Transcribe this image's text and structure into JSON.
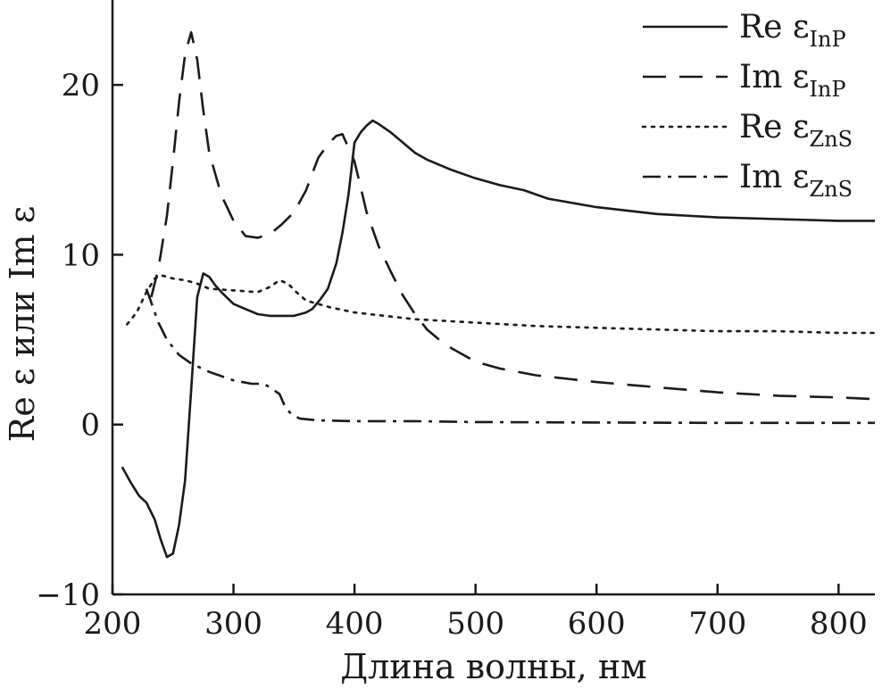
{
  "chart_data": {
    "type": "line",
    "title": "",
    "xlabel": "Длина волны, нм",
    "ylabel": "Re ε или Im ε",
    "xlim": [
      200,
      830
    ],
    "ylim": [
      -10,
      25
    ],
    "x_ticks": [
      200,
      300,
      400,
      500,
      600,
      700,
      800
    ],
    "x_tick_labels": [
      "200",
      "300",
      "400",
      "500",
      "600",
      "700",
      "800"
    ],
    "y_ticks": [
      -10,
      0,
      10,
      20
    ],
    "y_tick_labels": [
      "−10",
      "0",
      "10",
      "20"
    ],
    "grid": false,
    "legend_position": "top-right",
    "series": [
      {
        "name": "Re ε_InP",
        "label_main": "Re ε",
        "label_sub": "InP",
        "line_style": "solid",
        "color": "#1a1a1a",
        "points": [
          [
            208,
            -2.5
          ],
          [
            215,
            -3.4
          ],
          [
            222,
            -4.2
          ],
          [
            228,
            -4.6
          ],
          [
            235,
            -5.6
          ],
          [
            240,
            -6.8
          ],
          [
            245,
            -7.8
          ],
          [
            250,
            -7.6
          ],
          [
            255,
            -5.9
          ],
          [
            260,
            -3.3
          ],
          [
            265,
            2.0
          ],
          [
            270,
            7.5
          ],
          [
            275,
            8.9
          ],
          [
            280,
            8.7
          ],
          [
            285,
            8.2
          ],
          [
            290,
            7.8
          ],
          [
            300,
            7.1
          ],
          [
            310,
            6.8
          ],
          [
            320,
            6.5
          ],
          [
            330,
            6.4
          ],
          [
            340,
            6.4
          ],
          [
            350,
            6.4
          ],
          [
            360,
            6.6
          ],
          [
            365,
            6.8
          ],
          [
            372,
            7.4
          ],
          [
            378,
            8.0
          ],
          [
            385,
            9.5
          ],
          [
            390,
            11.3
          ],
          [
            395,
            13.5
          ],
          [
            400,
            16.6
          ],
          [
            405,
            17.2
          ],
          [
            410,
            17.6
          ],
          [
            415,
            17.9
          ],
          [
            420,
            17.7
          ],
          [
            430,
            17.2
          ],
          [
            440,
            16.6
          ],
          [
            450,
            16.0
          ],
          [
            460,
            15.6
          ],
          [
            480,
            15.0
          ],
          [
            500,
            14.5
          ],
          [
            520,
            14.1
          ],
          [
            540,
            13.8
          ],
          [
            560,
            13.3
          ],
          [
            600,
            12.8
          ],
          [
            650,
            12.4
          ],
          [
            700,
            12.2
          ],
          [
            750,
            12.1
          ],
          [
            800,
            12.0
          ],
          [
            830,
            12.0
          ]
        ]
      },
      {
        "name": "Im ε_InP",
        "label_main": "Im ε",
        "label_sub": "InP",
        "line_style": "dashed",
        "color": "#1a1a1a",
        "points": [
          [
            232,
            7.5
          ],
          [
            238,
            9.2
          ],
          [
            245,
            12.3
          ],
          [
            250,
            15.5
          ],
          [
            255,
            19.0
          ],
          [
            260,
            21.8
          ],
          [
            265,
            23.1
          ],
          [
            270,
            21.5
          ],
          [
            275,
            18.5
          ],
          [
            280,
            16.0
          ],
          [
            290,
            13.5
          ],
          [
            300,
            12.0
          ],
          [
            310,
            11.1
          ],
          [
            320,
            11.0
          ],
          [
            330,
            11.2
          ],
          [
            340,
            11.8
          ],
          [
            350,
            12.5
          ],
          [
            360,
            13.8
          ],
          [
            370,
            15.7
          ],
          [
            378,
            16.5
          ],
          [
            385,
            17.0
          ],
          [
            390,
            17.1
          ],
          [
            395,
            16.3
          ],
          [
            400,
            15.5
          ],
          [
            410,
            12.5
          ],
          [
            420,
            10.5
          ],
          [
            430,
            9.0
          ],
          [
            440,
            7.6
          ],
          [
            450,
            6.5
          ],
          [
            460,
            5.6
          ],
          [
            470,
            5.0
          ],
          [
            480,
            4.5
          ],
          [
            500,
            3.7
          ],
          [
            520,
            3.3
          ],
          [
            550,
            2.9
          ],
          [
            600,
            2.5
          ],
          [
            650,
            2.2
          ],
          [
            700,
            1.9
          ],
          [
            750,
            1.7
          ],
          [
            800,
            1.6
          ],
          [
            830,
            1.5
          ]
        ]
      },
      {
        "name": "Re ε_ZnS",
        "label_main": "Re ε",
        "label_sub": "ZnS",
        "line_style": "dotted",
        "color": "#1a1a1a",
        "points": [
          [
            212,
            5.9
          ],
          [
            220,
            6.6
          ],
          [
            228,
            7.8
          ],
          [
            235,
            8.6
          ],
          [
            240,
            8.8
          ],
          [
            250,
            8.6
          ],
          [
            260,
            8.5
          ],
          [
            270,
            8.3
          ],
          [
            280,
            8.0
          ],
          [
            300,
            7.9
          ],
          [
            320,
            7.8
          ],
          [
            330,
            8.1
          ],
          [
            338,
            8.5
          ],
          [
            345,
            8.3
          ],
          [
            352,
            7.8
          ],
          [
            360,
            7.3
          ],
          [
            380,
            6.9
          ],
          [
            400,
            6.6
          ],
          [
            450,
            6.2
          ],
          [
            500,
            6.0
          ],
          [
            550,
            5.8
          ],
          [
            600,
            5.7
          ],
          [
            650,
            5.6
          ],
          [
            700,
            5.5
          ],
          [
            750,
            5.5
          ],
          [
            800,
            5.4
          ],
          [
            830,
            5.4
          ]
        ]
      },
      {
        "name": "Im ε_ZnS",
        "label_main": "Im ε",
        "label_sub": "ZnS",
        "line_style": "dashdot",
        "color": "#1a1a1a",
        "points": [
          [
            228,
            8.0
          ],
          [
            233,
            7.0
          ],
          [
            238,
            6.0
          ],
          [
            245,
            5.0
          ],
          [
            255,
            4.1
          ],
          [
            265,
            3.6
          ],
          [
            280,
            3.1
          ],
          [
            300,
            2.6
          ],
          [
            315,
            2.4
          ],
          [
            325,
            2.4
          ],
          [
            330,
            2.2
          ],
          [
            338,
            1.8
          ],
          [
            343,
            1.0
          ],
          [
            348,
            0.6
          ],
          [
            355,
            0.35
          ],
          [
            370,
            0.25
          ],
          [
            400,
            0.2
          ],
          [
            450,
            0.2
          ],
          [
            500,
            0.15
          ],
          [
            600,
            0.12
          ],
          [
            700,
            0.1
          ],
          [
            800,
            0.1
          ],
          [
            830,
            0.1
          ]
        ]
      }
    ]
  }
}
